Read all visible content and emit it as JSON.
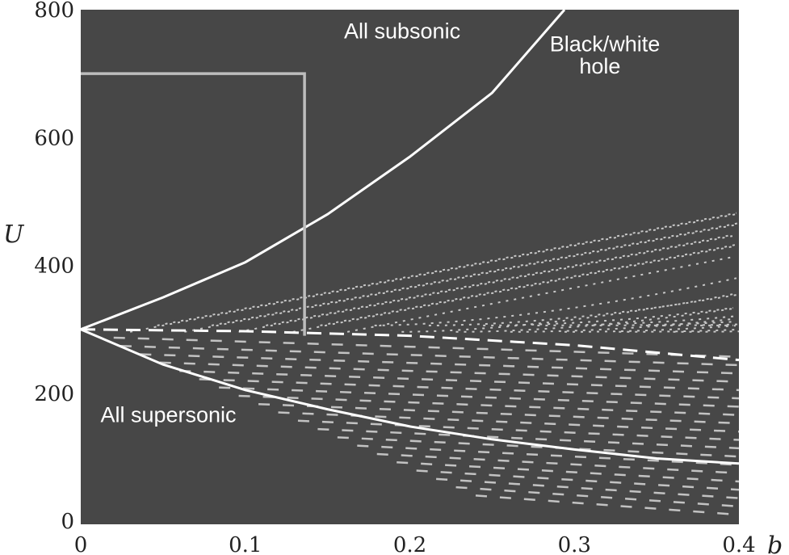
{
  "chart_data": {
    "type": "line",
    "title": "",
    "xlabel": "b",
    "ylabel": "U",
    "xlim": [
      0,
      0.4
    ],
    "ylim": [
      -5,
      800
    ],
    "x_ticks": [
      {
        "value": 0,
        "label": "0"
      },
      {
        "value": 0.1,
        "label": "0.1"
      },
      {
        "value": 0.2,
        "label": "0.2"
      },
      {
        "value": 0.3,
        "label": "0.3"
      },
      {
        "value": 0.4,
        "label": "0.4"
      }
    ],
    "y_ticks": [
      {
        "value": 0,
        "label": "0"
      },
      {
        "value": 200,
        "label": "200"
      },
      {
        "value": 400,
        "label": "400"
      },
      {
        "value": 600,
        "label": "600"
      },
      {
        "value": 800,
        "label": "800"
      }
    ],
    "grid": false,
    "background": "#474747",
    "series": [
      {
        "style": "solid",
        "color": "#ffffff",
        "x": [
          0,
          0.05,
          0.1,
          0.15,
          0.2,
          0.25,
          0.294
        ],
        "y": [
          300,
          350,
          405,
          480,
          570,
          670,
          800
        ]
      },
      {
        "style": "dashed",
        "color": "#ffffff",
        "x": [
          0,
          0.1,
          0.2,
          0.3,
          0.4
        ],
        "y": [
          300,
          297,
          290,
          275,
          252
        ]
      },
      {
        "style": "solid",
        "color": "#ffffff",
        "x": [
          0,
          0.05,
          0.1,
          0.15,
          0.2,
          0.25,
          0.3,
          0.35,
          0.4
        ],
        "y": [
          300,
          245,
          205,
          175,
          148,
          128,
          112,
          98,
          90
        ]
      },
      {
        "style": "box",
        "color": "#bdbdbd",
        "x": [
          0,
          0.136,
          0.136
        ],
        "y": [
          700,
          700,
          290
        ]
      }
    ],
    "annotations": [
      {
        "text": "All subsonic",
        "x": 0.16,
        "y": 755
      },
      {
        "text": "Black/white",
        "x": 0.285,
        "y": 735
      },
      {
        "text": "hole",
        "x": 0.303,
        "y": 700
      },
      {
        "text": "All supersonic",
        "x": 0.012,
        "y": 155
      }
    ]
  }
}
